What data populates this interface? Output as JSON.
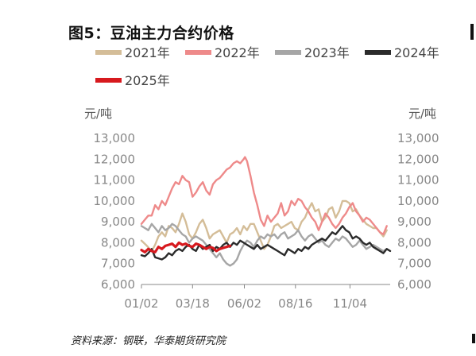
{
  "title": "图5：豆油主力合约价格",
  "source": "资料来源：钢联，华泰期货研究院",
  "chart_data": {
    "type": "line",
    "left_unit": "元/吨",
    "right_unit": "元/吨",
    "ylim": [
      6000,
      13000
    ],
    "yticks": [
      "13,000",
      "12,000",
      "11,000",
      "10,000",
      "9,000",
      "8,000",
      "7,000",
      "6,000"
    ],
    "ytick_values": [
      13000,
      12000,
      11000,
      10000,
      9000,
      8000,
      7000,
      6000
    ],
    "xticks": [
      "01/02",
      "03/18",
      "06/02",
      "08/16",
      "11/04"
    ],
    "xtick_days": [
      0,
      75,
      151,
      226,
      306
    ],
    "x_unit": "days from 01/02",
    "xlim": [
      0,
      365
    ],
    "legend": [
      {
        "name": "2021年",
        "color": "#d4bd98"
      },
      {
        "name": "2022年",
        "color": "#ee8a8a"
      },
      {
        "name": "2023年",
        "color": "#a6a6a6"
      },
      {
        "name": "2024年",
        "color": "#2b2b2b"
      },
      {
        "name": "2025年",
        "color": "#d7191e"
      }
    ],
    "series": [
      {
        "name": "2021年",
        "color": "#d4bd98",
        "width": 2.4,
        "x": [
          0,
          8,
          15,
          20,
          25,
          30,
          35,
          40,
          45,
          50,
          55,
          60,
          65,
          70,
          75,
          80,
          85,
          90,
          95,
          100,
          105,
          110,
          115,
          120,
          125,
          130,
          135,
          140,
          145,
          150,
          155,
          160,
          165,
          170,
          175,
          180,
          185,
          190,
          195,
          200,
          205,
          210,
          215,
          220,
          225,
          230,
          235,
          240,
          245,
          250,
          255,
          260,
          265,
          270,
          275,
          280,
          285,
          290,
          295,
          300,
          305,
          310,
          315,
          320,
          325,
          330,
          335,
          340,
          345,
          350,
          355,
          360
        ],
        "y": [
          8100,
          7850,
          7600,
          7900,
          8300,
          8500,
          8300,
          8800,
          8700,
          8500,
          8900,
          9400,
          9000,
          8400,
          8200,
          8500,
          8900,
          9100,
          8700,
          8200,
          8400,
          8500,
          8600,
          8300,
          8000,
          8400,
          8500,
          8700,
          8400,
          8800,
          8600,
          8900,
          8900,
          8500,
          8100,
          7700,
          7900,
          8300,
          8800,
          8900,
          8700,
          8800,
          8900,
          9000,
          8700,
          8600,
          9000,
          9200,
          9600,
          9900,
          9500,
          9600,
          9000,
          9200,
          9600,
          9700,
          9200,
          9500,
          10000,
          10000,
          9900,
          9500,
          9600,
          9300,
          9100,
          8900,
          8800,
          8700,
          8700,
          8500,
          8300,
          8600
        ]
      },
      {
        "name": "2022年",
        "color": "#ee8a8a",
        "width": 2.4,
        "x": [
          0,
          5,
          10,
          15,
          20,
          25,
          30,
          35,
          40,
          45,
          50,
          55,
          60,
          65,
          70,
          75,
          80,
          85,
          90,
          95,
          100,
          105,
          110,
          115,
          120,
          125,
          130,
          135,
          140,
          145,
          150,
          152,
          155,
          160,
          165,
          170,
          175,
          180,
          185,
          190,
          195,
          200,
          205,
          210,
          215,
          220,
          225,
          230,
          235,
          240,
          245,
          250,
          255,
          260,
          265,
          270,
          275,
          280,
          285,
          290,
          295,
          300,
          305,
          310,
          315,
          320,
          325,
          330,
          335,
          340,
          345,
          350,
          355,
          360
        ],
        "y": [
          8900,
          9100,
          9300,
          9300,
          9800,
          9600,
          10000,
          9800,
          10200,
          10600,
          10900,
          10800,
          11200,
          11000,
          10900,
          10200,
          10400,
          10700,
          10900,
          10500,
          10300,
          10800,
          11000,
          11100,
          11300,
          11500,
          11600,
          11800,
          11900,
          11800,
          12000,
          12100,
          11900,
          11200,
          10400,
          9800,
          9100,
          8800,
          9300,
          9000,
          9200,
          9400,
          9900,
          9300,
          9500,
          10000,
          9800,
          10100,
          10000,
          9700,
          9500,
          9200,
          9000,
          8600,
          9000,
          9400,
          9200,
          8900,
          8700,
          8900,
          9200,
          9400,
          9700,
          9900,
          9500,
          9300,
          9000,
          9200,
          9100,
          8900,
          8700,
          8500,
          8400,
          8800
        ]
      },
      {
        "name": "2023年",
        "color": "#a6a6a6",
        "width": 2.4,
        "x": [
          0,
          5,
          10,
          15,
          20,
          25,
          30,
          35,
          40,
          45,
          50,
          55,
          60,
          65,
          70,
          75,
          80,
          85,
          90,
          95,
          100,
          105,
          110,
          115,
          120,
          125,
          130,
          135,
          140,
          145,
          150,
          155,
          160,
          165,
          170,
          175,
          180,
          185,
          190,
          195,
          200,
          205,
          210,
          215,
          220,
          225,
          230,
          235,
          240,
          245,
          250,
          255,
          260,
          265,
          270,
          275,
          280,
          285,
          290,
          295,
          300,
          305,
          310,
          315,
          320,
          325,
          330,
          335,
          340,
          345,
          350,
          355,
          360
        ],
        "y": [
          8800,
          8700,
          8600,
          8900,
          8700,
          8500,
          8800,
          8600,
          8700,
          8900,
          8800,
          8600,
          8400,
          8300,
          8000,
          8200,
          8300,
          8200,
          8100,
          7900,
          7700,
          7500,
          7300,
          7500,
          7200,
          7000,
          6900,
          7000,
          7200,
          7600,
          7900,
          8100,
          8000,
          7800,
          8100,
          8300,
          8200,
          8400,
          8300,
          8400,
          8200,
          8400,
          8500,
          8200,
          8300,
          8400,
          8600,
          8300,
          8100,
          8300,
          8400,
          8200,
          8000,
          8100,
          7900,
          7800,
          8000,
          8200,
          8100,
          8300,
          8200,
          8000,
          7800,
          7900,
          8100,
          7900,
          7700,
          7800,
          7900,
          7800,
          7700,
          7600,
          7700
        ]
      },
      {
        "name": "2024年",
        "color": "#2b2b2b",
        "width": 2.4,
        "x": [
          0,
          5,
          10,
          15,
          20,
          25,
          30,
          35,
          40,
          45,
          50,
          55,
          60,
          65,
          70,
          75,
          80,
          85,
          90,
          95,
          100,
          105,
          110,
          115,
          120,
          125,
          130,
          135,
          140,
          145,
          150,
          155,
          160,
          165,
          170,
          175,
          180,
          185,
          190,
          195,
          200,
          205,
          210,
          215,
          220,
          225,
          230,
          235,
          240,
          245,
          250,
          255,
          260,
          265,
          270,
          275,
          280,
          285,
          290,
          295,
          300,
          305,
          310,
          315,
          320,
          325,
          330,
          335,
          340,
          345,
          350,
          355,
          360,
          365
        ],
        "y": [
          7400,
          7350,
          7500,
          7700,
          7300,
          7250,
          7200,
          7300,
          7500,
          7400,
          7600,
          7700,
          7600,
          7800,
          7900,
          7700,
          7600,
          7900,
          7700,
          7800,
          7900,
          7600,
          7800,
          7700,
          7900,
          8000,
          7800,
          8000,
          7900,
          8100,
          8000,
          7900,
          7800,
          7700,
          7900,
          7700,
          7800,
          7900,
          7800,
          7700,
          7600,
          7500,
          7400,
          7700,
          7600,
          7500,
          7700,
          7600,
          7800,
          7700,
          7900,
          8000,
          8100,
          8200,
          8100,
          8300,
          8500,
          8400,
          8600,
          8800,
          8600,
          8500,
          8200,
          8300,
          8200,
          8000,
          7900,
          8000,
          7800,
          7700,
          7600,
          7500,
          7700,
          7600
        ]
      },
      {
        "name": "2025年",
        "color": "#d7191e",
        "width": 3.2,
        "x": [
          0,
          5,
          10,
          15,
          20,
          25,
          30,
          35,
          40,
          45,
          50,
          55,
          60,
          65,
          70,
          75,
          80,
          85,
          90,
          95,
          100,
          105,
          110,
          115,
          120,
          125,
          130
        ],
        "y": [
          7650,
          7550,
          7700,
          7600,
          7550,
          7800,
          7700,
          7850,
          7900,
          7950,
          7800,
          8000,
          7900,
          7950,
          7850,
          7800,
          7950,
          7900,
          7800,
          7700,
          7800,
          7750,
          7600,
          7700,
          7750,
          7800,
          7850
        ]
      }
    ]
  }
}
